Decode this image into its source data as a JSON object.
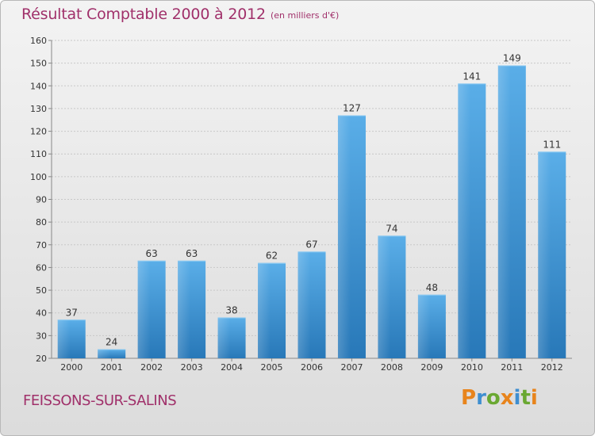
{
  "title": "Résultat Comptable 2000 à 2012",
  "subtitle": "(en milliers d'€)",
  "commune": "FEISSONS-SUR-SALINS",
  "logo": {
    "letters": [
      "P",
      "r",
      "o",
      "x",
      "i",
      "t",
      "i"
    ],
    "colors": [
      "#e8841c",
      "#3e8ed0",
      "#6aa832",
      "#e8841c",
      "#3e8ed0",
      "#6aa832",
      "#e8841c"
    ]
  },
  "colors": {
    "bar_top": "#5aaee8",
    "bar_bottom": "#2878b8",
    "title": "#a0306a"
  },
  "chart_data": {
    "type": "bar",
    "categories": [
      "2000",
      "2001",
      "2002",
      "2003",
      "2004",
      "2005",
      "2006",
      "2007",
      "2008",
      "2009",
      "2010",
      "2011",
      "2012"
    ],
    "values": [
      37,
      24,
      63,
      63,
      38,
      62,
      67,
      127,
      74,
      48,
      141,
      149,
      111
    ],
    "ylim": [
      20,
      160
    ],
    "yticks": [
      20,
      30,
      40,
      50,
      60,
      70,
      80,
      90,
      100,
      110,
      120,
      130,
      140,
      150,
      160
    ],
    "grid": true
  }
}
